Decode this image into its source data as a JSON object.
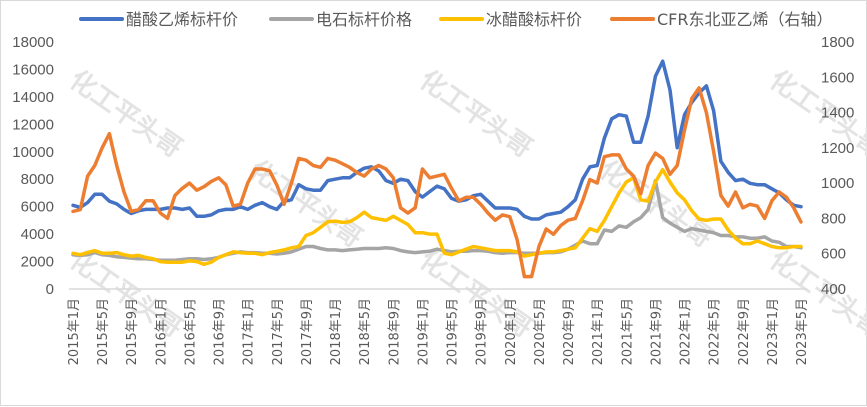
{
  "watermark": "化工平头哥",
  "chart_data": {
    "type": "line",
    "title": "",
    "x_start": "2015年1月",
    "x_tick_every_months": 4,
    "x_tick_labels": [
      "2015年1月",
      "2015年5月",
      "2015年9月",
      "2016年1月",
      "2016年5月",
      "2016年9月",
      "2017年1月",
      "2017年5月",
      "2017年9月",
      "2018年1月",
      "2018年5月",
      "2018年9月",
      "2019年1月",
      "2019年5月",
      "2019年9月",
      "2020年1月",
      "2020年5月",
      "2020年9月",
      "2021年1月",
      "2021年5月",
      "2021年9月",
      "2022年1月",
      "2022年5月",
      "2022年9月",
      "2023年1月",
      "2023年5月"
    ],
    "y_left": {
      "min": 0,
      "max": 18000,
      "step": 2000,
      "ticks": [
        "0",
        "2000",
        "4000",
        "6000",
        "8000",
        "10000",
        "12000",
        "14000",
        "16000",
        "18000"
      ]
    },
    "y_right": {
      "min": 400,
      "max": 1800,
      "step": 200,
      "ticks": [
        "400",
        "600",
        "800",
        "1000",
        "1200",
        "1400",
        "1600",
        "1800"
      ]
    },
    "legend_position": "top",
    "grid": false,
    "series": [
      {
        "name": "醋酸乙烯标杆价",
        "axis": "left",
        "color": "#4472c4",
        "values": [
          6100,
          5950,
          6300,
          6900,
          6900,
          6400,
          6200,
          5800,
          5500,
          5700,
          5800,
          5800,
          5800,
          5900,
          5900,
          5800,
          5900,
          5300,
          5300,
          5400,
          5700,
          5800,
          5800,
          6000,
          5800,
          6100,
          6300,
          6000,
          5800,
          6400,
          6500,
          7600,
          7300,
          7200,
          7200,
          7900,
          8000,
          8100,
          8100,
          8500,
          8800,
          8900,
          8600,
          7900,
          7700,
          8000,
          7900,
          7100,
          6700,
          7100,
          7500,
          7300,
          6600,
          6400,
          6500,
          6800,
          6900,
          6400,
          5900,
          5900,
          5900,
          5800,
          5300,
          5100,
          5100,
          5400,
          5500,
          5600,
          6000,
          6500,
          8000,
          8900,
          9000,
          11000,
          12400,
          12700,
          12600,
          10700,
          10700,
          12600,
          15500,
          16600,
          14500,
          10300,
          12700,
          13600,
          14300,
          14800,
          13000,
          9300,
          8500,
          7900,
          8000,
          7700,
          7600,
          7600,
          7300,
          7000,
          6500,
          6100,
          6000
        ]
      },
      {
        "name": "电石标杆价格",
        "axis": "left",
        "color": "#a5a5a5",
        "values": [
          2500,
          2450,
          2500,
          2650,
          2500,
          2450,
          2350,
          2300,
          2250,
          2200,
          2200,
          2150,
          2100,
          2100,
          2100,
          2150,
          2200,
          2200,
          2150,
          2200,
          2300,
          2500,
          2600,
          2700,
          2650,
          2650,
          2600,
          2600,
          2550,
          2600,
          2700,
          2900,
          3100,
          3100,
          2950,
          2850,
          2850,
          2800,
          2850,
          2900,
          2950,
          2950,
          2950,
          3000,
          2950,
          2800,
          2700,
          2650,
          2700,
          2750,
          2900,
          2800,
          2700,
          2750,
          2750,
          2800,
          2800,
          2750,
          2650,
          2600,
          2650,
          2650,
          2600,
          2600,
          2600,
          2650,
          2650,
          2700,
          2900,
          3200,
          3500,
          3300,
          3300,
          4300,
          4200,
          4600,
          4500,
          4900,
          5200,
          5800,
          7900,
          5200,
          4800,
          4500,
          4200,
          4400,
          4300,
          4200,
          4100,
          3900,
          3900,
          3800,
          3800,
          3700,
          3700,
          3800,
          3500,
          3400,
          3100,
          3100,
          3000
        ]
      },
      {
        "name": "冰醋酸标杆价",
        "axis": "left",
        "color": "#ffc000",
        "values": [
          2600,
          2500,
          2650,
          2800,
          2600,
          2600,
          2650,
          2500,
          2400,
          2450,
          2300,
          2200,
          2000,
          1950,
          1950,
          1950,
          2050,
          2000,
          1800,
          1950,
          2300,
          2500,
          2700,
          2650,
          2600,
          2600,
          2500,
          2650,
          2750,
          2850,
          3000,
          3100,
          3900,
          4100,
          4500,
          4900,
          4950,
          4850,
          4900,
          5200,
          5600,
          5200,
          5100,
          5000,
          5300,
          5000,
          4700,
          4100,
          4100,
          4000,
          4000,
          2600,
          2500,
          2700,
          2900,
          3100,
          3000,
          2900,
          2800,
          2800,
          2800,
          2700,
          2400,
          2500,
          2600,
          2700,
          2700,
          2800,
          2900,
          3000,
          3700,
          4400,
          4200,
          5000,
          6000,
          7000,
          7800,
          8100,
          6500,
          6400,
          7800,
          8700,
          7800,
          7000,
          6500,
          5700,
          5100,
          5000,
          5100,
          5100,
          4300,
          3700,
          3300,
          3300,
          3500,
          3300,
          3100,
          3000,
          3000,
          3100,
          3100
        ]
      },
      {
        "name": "CFR东北亚乙烯（右轴）",
        "axis": "right",
        "color": "#ed7d31",
        "values": [
          840,
          850,
          1040,
          1100,
          1200,
          1280,
          1100,
          950,
          840,
          850,
          900,
          900,
          830,
          800,
          930,
          970,
          1000,
          960,
          980,
          1010,
          1030,
          990,
          870,
          880,
          1000,
          1080,
          1080,
          1070,
          990,
          880,
          1000,
          1140,
          1130,
          1100,
          1090,
          1140,
          1130,
          1110,
          1090,
          1060,
          1040,
          1080,
          1100,
          1080,
          1030,
          860,
          830,
          860,
          1080,
          1030,
          1040,
          1050,
          970,
          900,
          920,
          920,
          880,
          830,
          790,
          820,
          810,
          680,
          470,
          470,
          640,
          740,
          710,
          760,
          790,
          800,
          900,
          1020,
          1000,
          1150,
          1160,
          1160,
          1080,
          1040,
          940,
          1100,
          1170,
          1140,
          1050,
          1100,
          1300,
          1480,
          1540,
          1400,
          1180,
          930,
          870,
          950,
          860,
          880,
          870,
          800,
          900,
          950,
          920,
          860,
          780
        ]
      }
    ]
  }
}
